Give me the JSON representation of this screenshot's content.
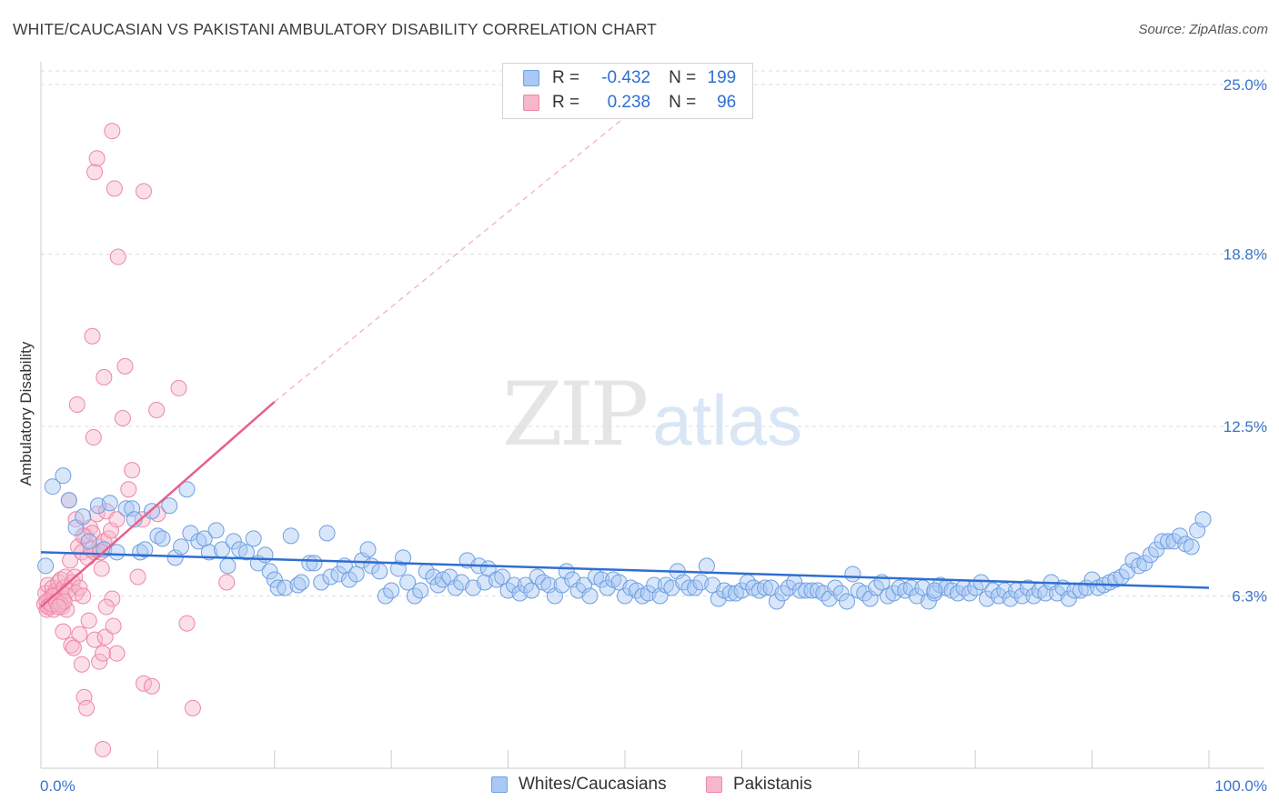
{
  "title": "WHITE/CAUCASIAN VS PAKISTANI AMBULATORY DISABILITY CORRELATION CHART",
  "source": "Source: ZipAtlas.com",
  "watermark": {
    "zip": "ZIP",
    "atlas": "atlas"
  },
  "colors": {
    "blue_fill": "#a9c8f3",
    "blue_stroke": "#6f9fe0",
    "blue_line": "#2f6fd0",
    "pink_fill": "#f7b7cb",
    "pink_stroke": "#ee86a6",
    "pink_line": "#e8608a",
    "axis_text": "#3b73c9",
    "grid": "#dddddd"
  },
  "legend_box": {
    "r_label": "R =",
    "n_label": "N =",
    "rows": [
      {
        "r": "-0.432",
        "n": "199",
        "color": "#a9c8f3"
      },
      {
        "r": "0.238",
        "n": "96",
        "color": "#f7b7cb"
      }
    ]
  },
  "bottom_legend": [
    {
      "label": "Whites/Caucasians",
      "color": "#a9c8f3"
    },
    {
      "label": "Pakistanis",
      "color": "#f7b7cb"
    }
  ],
  "chart_data": {
    "type": "scatter",
    "title": "WHITE/CAUCASIAN VS PAKISTANI AMBULATORY DISABILITY CORRELATION CHART",
    "xlabel": "",
    "ylabel": "Ambulatory Disability",
    "xlim": [
      0,
      100
    ],
    "ylim": [
      0,
      25.5
    ],
    "x_tick_labels": [
      "0.0%",
      "100.0%"
    ],
    "y_ticks": [
      {
        "value": 25.0,
        "label": "25.0%"
      },
      {
        "value": 18.8,
        "label": "18.8%"
      },
      {
        "value": 12.5,
        "label": "12.5%"
      },
      {
        "value": 6.3,
        "label": "6.3%"
      }
    ],
    "grid": true,
    "series": [
      {
        "name": "Whites/Caucasians",
        "color": "#a9c8f3",
        "R": -0.432,
        "N": 199,
        "trend": {
          "x": [
            0,
            100
          ],
          "y": [
            7.9,
            6.6
          ]
        },
        "points": [
          [
            0.4,
            7.4
          ],
          [
            1.0,
            10.3
          ],
          [
            1.9,
            10.7
          ],
          [
            2.4,
            9.8
          ],
          [
            3.0,
            8.8
          ],
          [
            3.6,
            9.2
          ],
          [
            4.1,
            8.3
          ],
          [
            4.9,
            9.6
          ],
          [
            5.4,
            8.0
          ],
          [
            5.9,
            9.7
          ],
          [
            6.5,
            7.9
          ],
          [
            7.3,
            9.5
          ],
          [
            7.8,
            9.5
          ],
          [
            8.0,
            9.1
          ],
          [
            8.5,
            7.9
          ],
          [
            8.9,
            8.0
          ],
          [
            9.5,
            9.4
          ],
          [
            10.0,
            8.5
          ],
          [
            10.4,
            8.4
          ],
          [
            11.0,
            9.6
          ],
          [
            11.5,
            7.7
          ],
          [
            12.0,
            8.1
          ],
          [
            12.5,
            10.2
          ],
          [
            12.8,
            8.6
          ],
          [
            13.5,
            8.3
          ],
          [
            14.0,
            8.4
          ],
          [
            14.4,
            7.9
          ],
          [
            15.0,
            8.7
          ],
          [
            15.5,
            8.0
          ],
          [
            16.0,
            7.4
          ],
          [
            16.5,
            8.3
          ],
          [
            17.0,
            8.0
          ],
          [
            17.6,
            7.9
          ],
          [
            18.2,
            8.4
          ],
          [
            18.6,
            7.5
          ],
          [
            19.2,
            7.8
          ],
          [
            19.6,
            7.2
          ],
          [
            20.0,
            6.9
          ],
          [
            20.3,
            6.6
          ],
          [
            20.9,
            6.6
          ],
          [
            21.4,
            8.5
          ],
          [
            22.0,
            6.7
          ],
          [
            22.3,
            6.8
          ],
          [
            23.0,
            7.5
          ],
          [
            23.4,
            7.5
          ],
          [
            24.0,
            6.8
          ],
          [
            24.5,
            8.6
          ],
          [
            24.8,
            7.0
          ],
          [
            25.5,
            7.1
          ],
          [
            26.0,
            7.4
          ],
          [
            26.4,
            6.9
          ],
          [
            27.0,
            7.1
          ],
          [
            27.5,
            7.6
          ],
          [
            28.0,
            8.0
          ],
          [
            28.3,
            7.4
          ],
          [
            29.0,
            7.2
          ],
          [
            29.5,
            6.3
          ],
          [
            30.0,
            6.5
          ],
          [
            30.6,
            7.3
          ],
          [
            31.0,
            7.7
          ],
          [
            31.4,
            6.8
          ],
          [
            32.0,
            6.3
          ],
          [
            32.5,
            6.5
          ],
          [
            33.0,
            7.2
          ],
          [
            33.6,
            7.0
          ],
          [
            34.0,
            6.7
          ],
          [
            34.4,
            6.9
          ],
          [
            35.0,
            7.0
          ],
          [
            35.5,
            6.6
          ],
          [
            36.0,
            6.8
          ],
          [
            36.5,
            7.6
          ],
          [
            37.0,
            6.6
          ],
          [
            37.5,
            7.4
          ],
          [
            38.0,
            6.8
          ],
          [
            38.3,
            7.3
          ],
          [
            39.0,
            6.9
          ],
          [
            39.5,
            7.0
          ],
          [
            40.0,
            6.5
          ],
          [
            40.5,
            6.7
          ],
          [
            41.0,
            6.4
          ],
          [
            41.5,
            6.7
          ],
          [
            42.0,
            6.5
          ],
          [
            42.5,
            7.0
          ],
          [
            43.0,
            6.8
          ],
          [
            43.5,
            6.7
          ],
          [
            44.0,
            6.3
          ],
          [
            44.6,
            6.7
          ],
          [
            45.0,
            7.2
          ],
          [
            45.5,
            6.9
          ],
          [
            46.0,
            6.5
          ],
          [
            46.5,
            6.7
          ],
          [
            47.0,
            6.3
          ],
          [
            47.5,
            7.0
          ],
          [
            48.0,
            6.9
          ],
          [
            48.5,
            6.6
          ],
          [
            49.0,
            6.9
          ],
          [
            49.5,
            6.8
          ],
          [
            50.0,
            6.3
          ],
          [
            50.5,
            6.6
          ],
          [
            51.0,
            6.5
          ],
          [
            51.5,
            6.3
          ],
          [
            52.0,
            6.4
          ],
          [
            52.5,
            6.7
          ],
          [
            53.0,
            6.3
          ],
          [
            53.5,
            6.7
          ],
          [
            54.0,
            6.6
          ],
          [
            54.5,
            7.2
          ],
          [
            55.0,
            6.8
          ],
          [
            55.5,
            6.6
          ],
          [
            56.0,
            6.6
          ],
          [
            56.5,
            6.8
          ],
          [
            57.0,
            7.4
          ],
          [
            57.5,
            6.7
          ],
          [
            58.0,
            6.2
          ],
          [
            58.5,
            6.5
          ],
          [
            59.0,
            6.4
          ],
          [
            59.5,
            6.4
          ],
          [
            60.0,
            6.5
          ],
          [
            60.5,
            6.8
          ],
          [
            61.0,
            6.6
          ],
          [
            61.5,
            6.5
          ],
          [
            62.0,
            6.6
          ],
          [
            62.5,
            6.6
          ],
          [
            63.0,
            6.1
          ],
          [
            63.5,
            6.4
          ],
          [
            64.0,
            6.6
          ],
          [
            64.5,
            6.8
          ],
          [
            65.0,
            6.5
          ],
          [
            65.5,
            6.5
          ],
          [
            66.0,
            6.5
          ],
          [
            66.5,
            6.5
          ],
          [
            67.0,
            6.4
          ],
          [
            67.5,
            6.2
          ],
          [
            68.0,
            6.6
          ],
          [
            68.5,
            6.4
          ],
          [
            69.0,
            6.1
          ],
          [
            69.5,
            7.1
          ],
          [
            70.0,
            6.5
          ],
          [
            70.5,
            6.4
          ],
          [
            71.0,
            6.2
          ],
          [
            71.5,
            6.6
          ],
          [
            72.0,
            6.8
          ],
          [
            72.5,
            6.3
          ],
          [
            73.0,
            6.4
          ],
          [
            73.5,
            6.6
          ],
          [
            74.0,
            6.5
          ],
          [
            74.5,
            6.6
          ],
          [
            75.0,
            6.3
          ],
          [
            75.5,
            6.6
          ],
          [
            76.0,
            6.1
          ],
          [
            76.5,
            6.4
          ],
          [
            77.0,
            6.7
          ],
          [
            77.5,
            6.6
          ],
          [
            78.0,
            6.5
          ],
          [
            78.5,
            6.4
          ],
          [
            79.0,
            6.6
          ],
          [
            79.5,
            6.4
          ],
          [
            80.0,
            6.6
          ],
          [
            80.5,
            6.8
          ],
          [
            81.0,
            6.2
          ],
          [
            81.5,
            6.5
          ],
          [
            82.0,
            6.3
          ],
          [
            82.5,
            6.5
          ],
          [
            83.0,
            6.2
          ],
          [
            83.5,
            6.5
          ],
          [
            84.0,
            6.3
          ],
          [
            84.5,
            6.6
          ],
          [
            85.0,
            6.3
          ],
          [
            85.5,
            6.5
          ],
          [
            86.0,
            6.4
          ],
          [
            86.5,
            6.8
          ],
          [
            87.0,
            6.4
          ],
          [
            87.5,
            6.6
          ],
          [
            88.0,
            6.2
          ],
          [
            88.5,
            6.5
          ],
          [
            89.0,
            6.5
          ],
          [
            89.5,
            6.6
          ],
          [
            90.0,
            6.9
          ],
          [
            90.5,
            6.6
          ],
          [
            91.0,
            6.7
          ],
          [
            91.5,
            6.8
          ],
          [
            92.0,
            6.9
          ],
          [
            92.5,
            7.0
          ],
          [
            93.0,
            7.2
          ],
          [
            93.5,
            7.6
          ],
          [
            94.0,
            7.4
          ],
          [
            94.5,
            7.5
          ],
          [
            95.0,
            7.8
          ],
          [
            95.5,
            8.0
          ],
          [
            96.0,
            8.3
          ],
          [
            96.5,
            8.3
          ],
          [
            97.0,
            8.3
          ],
          [
            97.5,
            8.5
          ],
          [
            98.0,
            8.2
          ],
          [
            98.5,
            8.1
          ],
          [
            99.0,
            8.7
          ],
          [
            99.5,
            9.1
          ],
          [
            76.5,
            6.5
          ]
        ]
      },
      {
        "name": "Pakistanis",
        "color": "#f7b7cb",
        "R": 0.238,
        "N": 96,
        "trend": {
          "x": [
            0,
            20
          ],
          "y": [
            5.9,
            13.4
          ]
        },
        "trend_extension": {
          "x": [
            20,
            54
          ],
          "y": [
            13.4,
            25.2
          ]
        },
        "points": [
          [
            0.3,
            6.0
          ],
          [
            0.4,
            6.4
          ],
          [
            0.5,
            5.8
          ],
          [
            0.6,
            6.7
          ],
          [
            0.7,
            6.1
          ],
          [
            0.8,
            5.9
          ],
          [
            0.9,
            6.3
          ],
          [
            1.0,
            6.6
          ],
          [
            1.1,
            5.8
          ],
          [
            1.2,
            6.2
          ],
          [
            1.3,
            6.5
          ],
          [
            1.4,
            6.0
          ],
          [
            1.5,
            6.8
          ],
          [
            1.6,
            6.4
          ],
          [
            1.7,
            6.9
          ],
          [
            1.8,
            5.9
          ],
          [
            1.9,
            6.2
          ],
          [
            2.0,
            6.6
          ],
          [
            2.1,
            7.0
          ],
          [
            2.2,
            5.8
          ],
          [
            0.5,
            6.1
          ],
          [
            0.6,
            5.9
          ],
          [
            0.9,
            6.0
          ],
          [
            1.1,
            6.3
          ],
          [
            1.3,
            6.1
          ],
          [
            1.7,
            6.0
          ],
          [
            2.3,
            6.5
          ],
          [
            2.5,
            7.6
          ],
          [
            2.7,
            6.8
          ],
          [
            2.9,
            7.0
          ],
          [
            3.0,
            6.4
          ],
          [
            3.2,
            8.1
          ],
          [
            3.3,
            6.6
          ],
          [
            3.5,
            7.9
          ],
          [
            3.6,
            6.3
          ],
          [
            3.8,
            8.5
          ],
          [
            4.0,
            7.7
          ],
          [
            4.2,
            8.8
          ],
          [
            4.4,
            8.6
          ],
          [
            4.6,
            7.9
          ],
          [
            4.8,
            9.3
          ],
          [
            5.0,
            8.1
          ],
          [
            5.2,
            7.3
          ],
          [
            5.4,
            8.3
          ],
          [
            5.6,
            9.4
          ],
          [
            5.8,
            8.4
          ],
          [
            2.4,
            9.8
          ],
          [
            3.0,
            9.1
          ],
          [
            3.6,
            8.5
          ],
          [
            4.3,
            8.0
          ],
          [
            5.1,
            7.9
          ],
          [
            6.0,
            8.7
          ],
          [
            3.1,
            13.3
          ],
          [
            4.5,
            12.1
          ],
          [
            4.4,
            15.8
          ],
          [
            5.4,
            14.3
          ],
          [
            7.2,
            14.7
          ],
          [
            6.6,
            18.7
          ],
          [
            6.3,
            21.2
          ],
          [
            4.6,
            21.8
          ],
          [
            4.8,
            22.3
          ],
          [
            6.1,
            23.3
          ],
          [
            8.8,
            21.1
          ],
          [
            7.0,
            12.8
          ],
          [
            7.8,
            10.9
          ],
          [
            8.7,
            9.1
          ],
          [
            9.9,
            13.1
          ],
          [
            11.8,
            13.9
          ],
          [
            7.5,
            10.2
          ],
          [
            6.5,
            9.1
          ],
          [
            8.3,
            7.0
          ],
          [
            10.0,
            9.3
          ],
          [
            15.9,
            6.8
          ],
          [
            12.5,
            5.3
          ],
          [
            1.9,
            5.0
          ],
          [
            2.6,
            4.5
          ],
          [
            2.8,
            4.4
          ],
          [
            3.3,
            4.9
          ],
          [
            3.5,
            3.8
          ],
          [
            4.1,
            5.4
          ],
          [
            4.6,
            4.7
          ],
          [
            5.0,
            3.9
          ],
          [
            5.3,
            4.2
          ],
          [
            5.5,
            4.8
          ],
          [
            6.2,
            5.2
          ],
          [
            6.5,
            4.2
          ],
          [
            6.1,
            6.2
          ],
          [
            5.6,
            5.9
          ],
          [
            3.7,
            2.6
          ],
          [
            3.9,
            2.2
          ],
          [
            8.8,
            3.1
          ],
          [
            9.5,
            3.0
          ],
          [
            13.0,
            2.2
          ],
          [
            5.3,
            0.7
          ],
          [
            2.0,
            6.1
          ],
          [
            1.5,
            5.9
          ]
        ]
      }
    ]
  }
}
